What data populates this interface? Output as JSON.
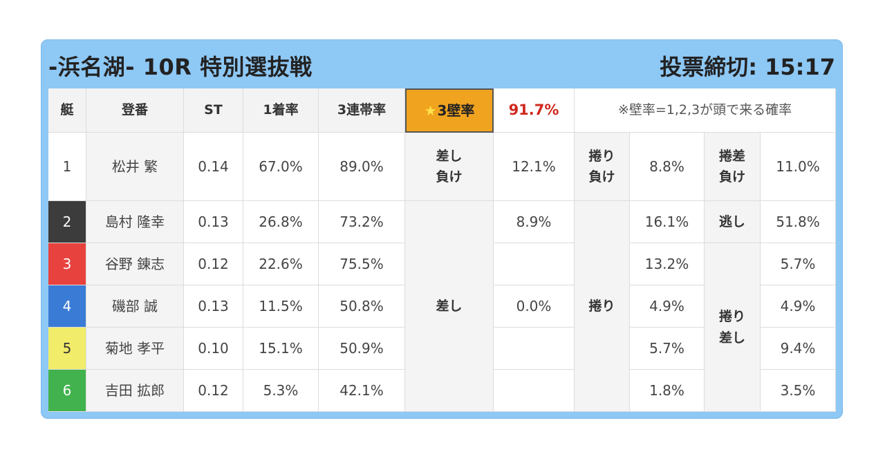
{
  "header": {
    "title": "-浜名湖- 10R 特別選抜戦",
    "deadline": "投票締切: 15:17"
  },
  "table": {
    "headers": {
      "boat": "艇",
      "racer": "登番",
      "st": "ST",
      "first_rate": "1着率",
      "top3_rate": "3連帯率",
      "wall_star": "★",
      "wall_label": "3壁率",
      "wall_value": "91.7%",
      "wall_note": "※壁率=1,2,3が頭で来る確率"
    },
    "colors": {
      "boat1": "#ffffff",
      "boat2": "#3c3c3c",
      "boat3": "#e8423f",
      "boat4": "#3a7bd5",
      "boat5": "#f1ec6a",
      "boat6": "#41b24d",
      "wall_highlight": "#f0a31f",
      "wall_value": "#d0281e"
    },
    "rows": [
      {
        "boat": "1",
        "name": "松井 繁",
        "st": "0.14",
        "first": "67.0%",
        "top3": "89.0%"
      },
      {
        "boat": "2",
        "name": "島村 隆幸",
        "st": "0.13",
        "first": "26.8%",
        "top3": "73.2%"
      },
      {
        "boat": "3",
        "name": "谷野 錬志",
        "st": "0.12",
        "first": "22.6%",
        "top3": "75.5%"
      },
      {
        "boat": "4",
        "name": "磯部 誠",
        "st": "0.13",
        "first": "11.5%",
        "top3": "50.8%"
      },
      {
        "boat": "5",
        "name": "菊地 孝平",
        "st": "0.10",
        "first": "15.1%",
        "top3": "50.9%"
      },
      {
        "boat": "6",
        "name": "吉田 拡郎",
        "st": "0.12",
        "first": "5.3%",
        "top3": "42.1%"
      }
    ],
    "outcomes": {
      "sashi_make_label": "差し\n負け",
      "sashi_make_value": "12.1%",
      "makuri_make_label": "捲り\n負け",
      "makuri_make_value": "8.8%",
      "makurisashi_make_label": "捲差\n負け",
      "makurisashi_make_value": "11.0%",
      "sashi_label": "差し",
      "sashi_values": [
        "8.9%",
        "",
        "0.0%",
        "",
        ""
      ],
      "makuri_label": "捲り",
      "makuri_values": [
        "16.1%",
        "13.2%",
        "4.9%",
        "5.7%",
        "1.8%"
      ],
      "nige_label": "逃し",
      "nige_value": "51.8%",
      "makurisashi_label": "捲り\n差し",
      "makurisashi_values": [
        "5.7%",
        "4.9%",
        "9.4%",
        "3.5%"
      ]
    }
  }
}
